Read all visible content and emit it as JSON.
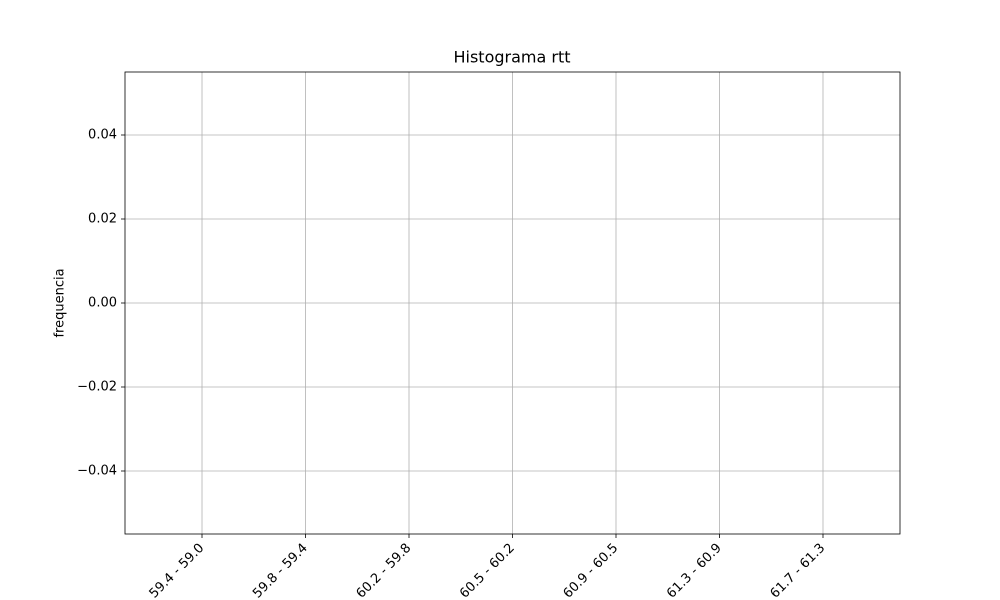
{
  "chart_data": {
    "type": "bar",
    "title": "Histograma rtt",
    "y_label": "frequencia",
    "categories": [
      "59.4 - 59.0",
      "59.8 - 59.4",
      "60.2 - 59.8",
      "60.5 - 60.2",
      "60.9 - 60.5",
      "61.3 - 60.9",
      "61.7 - 61.3"
    ],
    "values": [
      0,
      0,
      0,
      0,
      0,
      0,
      0
    ],
    "color": "#1f77b4",
    "ylim": [
      -0.055,
      0.055
    ],
    "yticks": [
      {
        "value": -0.04,
        "label": "−0.04"
      },
      {
        "value": -0.02,
        "label": "−0.02"
      },
      {
        "value": 0,
        "label": "0.00"
      },
      {
        "value": 0.02,
        "label": "0.02"
      },
      {
        "value": 0.04,
        "label": "0.04"
      }
    ],
    "grid": true
  }
}
